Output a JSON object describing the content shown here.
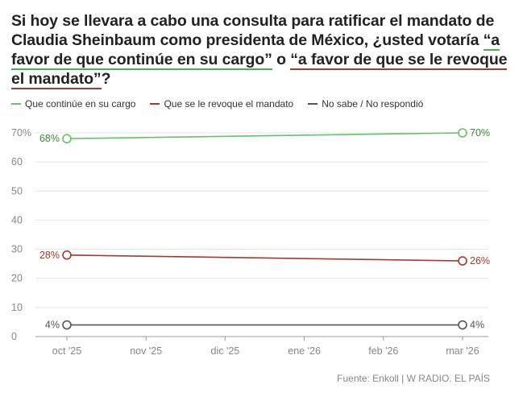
{
  "title": {
    "part1": "Si hoy se llevara a cabo una consulta para ratificar el mandato de Claudia Sheinbaum como presidenta de México, ¿usted votaría ",
    "option_a": "“a favor de que continúe en su cargo”",
    "connector": " o ",
    "option_b": "“a favor de que se le revoque el mandato”",
    "end": "?"
  },
  "legend": [
    {
      "label": "Que continúe en su cargo",
      "color": "#66c266"
    },
    {
      "label": "Que se le revoque el mandato",
      "color": "#a23b2a"
    },
    {
      "label": "No sabe / No respondió",
      "color": "#555555"
    }
  ],
  "source": "Fuente: Enkoll | W RADIO. EL PAÍS",
  "chart_data": {
    "type": "line",
    "categories": [
      "oct '25",
      "nov '25",
      "dic '25",
      "ene '26",
      "feb '26",
      "mar '26"
    ],
    "ylim": [
      0,
      70
    ],
    "yticks": [
      0,
      10,
      20,
      30,
      40,
      50,
      60,
      70
    ],
    "ytick_labels": [
      "0",
      "10",
      "20",
      "30",
      "40",
      "50",
      "60",
      "70%"
    ],
    "series": [
      {
        "name": "Que continúe en su cargo",
        "color": "#66c266",
        "label_color": "#3d8b3d",
        "points": [
          {
            "x": 0,
            "y": 68,
            "label": "68%"
          },
          {
            "x": 5,
            "y": 70,
            "label": "70%"
          }
        ]
      },
      {
        "name": "Que se le revoque el mandato",
        "color": "#a23b2a",
        "label_color": "#a23b2a",
        "points": [
          {
            "x": 0,
            "y": 28,
            "label": "28%"
          },
          {
            "x": 5,
            "y": 26,
            "label": "26%"
          }
        ]
      },
      {
        "name": "No sabe / No respondió",
        "color": "#555555",
        "label_color": "#555555",
        "points": [
          {
            "x": 0,
            "y": 4,
            "label": "4%"
          },
          {
            "x": 5,
            "y": 4,
            "label": "4%"
          }
        ]
      }
    ]
  }
}
